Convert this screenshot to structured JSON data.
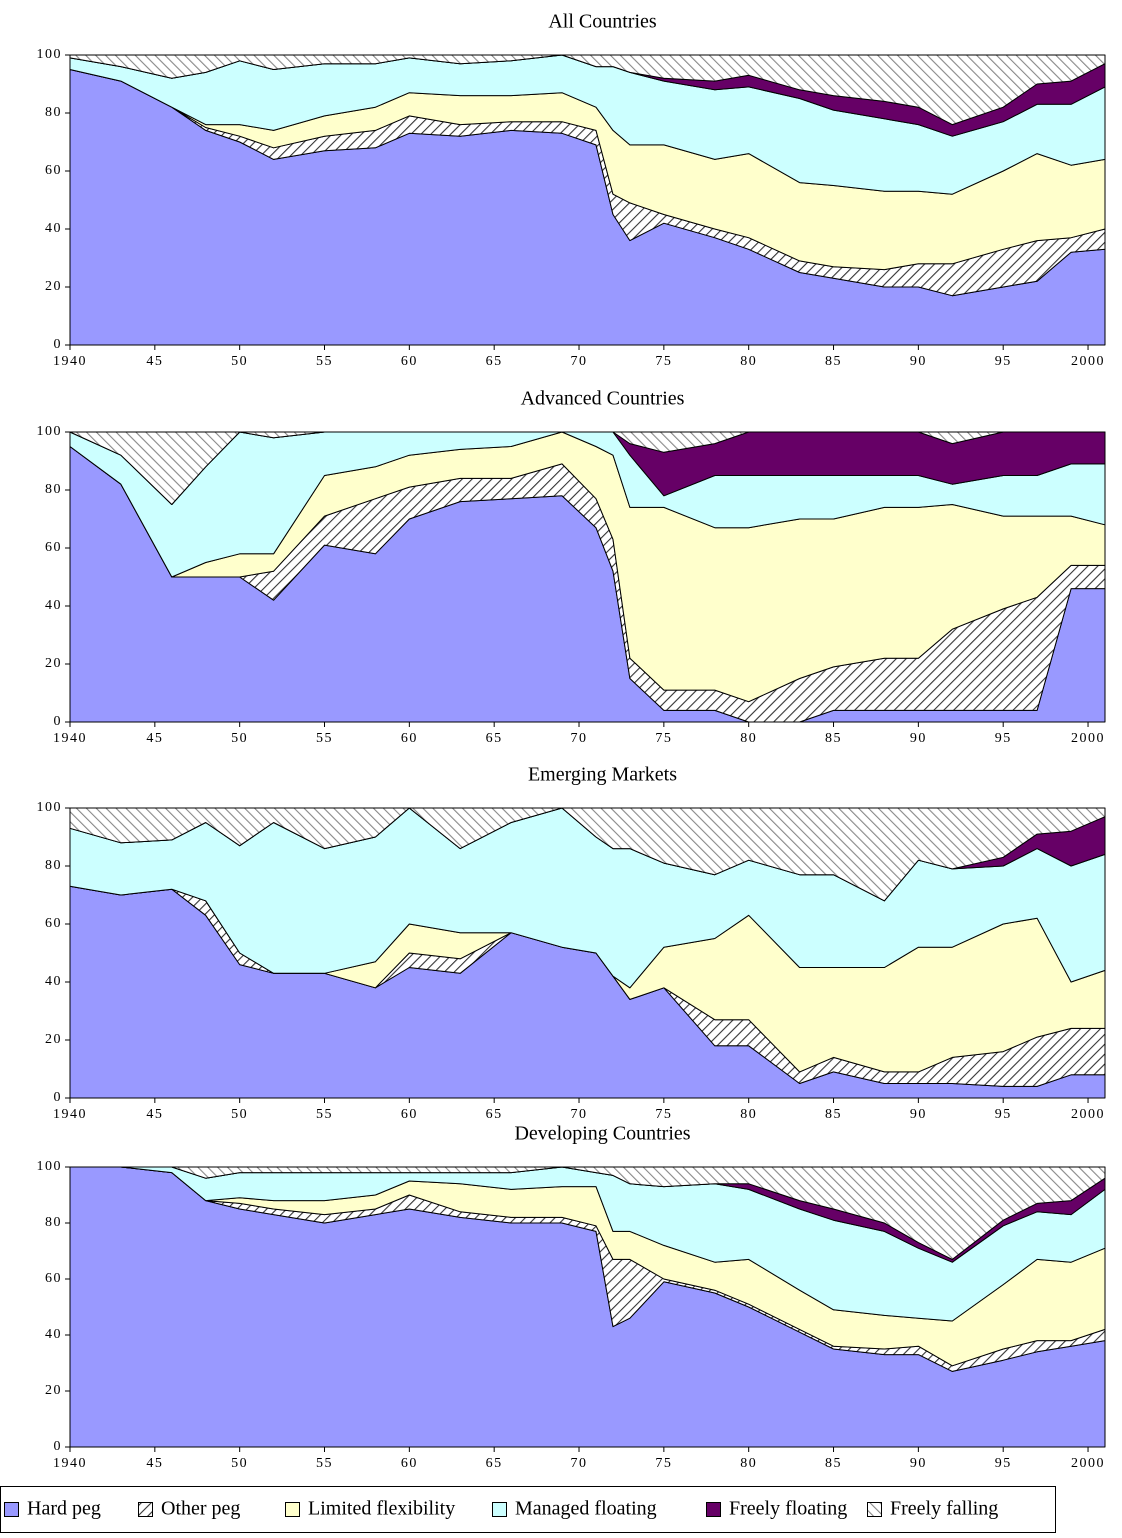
{
  "chart_data": [
    {
      "type": "stacked-area",
      "title": "All Countries",
      "x": [
        1940,
        1943,
        1946,
        1948,
        1950,
        1952,
        1955,
        1958,
        1960,
        1963,
        1966,
        1969,
        1971,
        1972,
        1973,
        1975,
        1978,
        1980,
        1983,
        1985,
        1988,
        1990,
        1992,
        1995,
        1997,
        1999,
        2001
      ],
      "series": [
        {
          "values": [
            95,
            91,
            82,
            74,
            70,
            64,
            67,
            68,
            73,
            72,
            74,
            73,
            69,
            45,
            36,
            42,
            37,
            33,
            25,
            23,
            20,
            20,
            17,
            20,
            22,
            32,
            33
          ]
        },
        {
          "values": [
            0,
            0,
            0,
            1,
            2,
            4,
            5,
            6,
            6,
            4,
            3,
            4,
            5,
            7,
            13,
            3,
            3,
            4,
            4,
            4,
            6,
            8,
            11,
            13,
            14,
            5,
            7
          ]
        },
        {
          "values": [
            0,
            0,
            0,
            1,
            4,
            6,
            7,
            8,
            8,
            10,
            9,
            10,
            8,
            22,
            20,
            24,
            24,
            29,
            27,
            28,
            27,
            25,
            24,
            27,
            30,
            25,
            24
          ]
        },
        {
          "values": [
            4,
            5,
            10,
            18,
            22,
            21,
            18,
            15,
            12,
            11,
            12,
            13,
            14,
            22,
            25,
            22,
            24,
            23,
            29,
            26,
            25,
            23,
            20,
            17,
            17,
            21,
            25
          ]
        },
        {
          "values": [
            0,
            0,
            0,
            0,
            0,
            0,
            0,
            0,
            0,
            0,
            0,
            0,
            0,
            0,
            0,
            1,
            3,
            4,
            3,
            5,
            6,
            6,
            4,
            5,
            7,
            8,
            8
          ]
        },
        {
          "values": [
            1,
            4,
            8,
            6,
            2,
            5,
            3,
            3,
            1,
            3,
            2,
            0,
            4,
            4,
            6,
            8,
            9,
            7,
            12,
            14,
            16,
            18,
            24,
            18,
            10,
            9,
            3
          ]
        }
      ],
      "xlim": [
        1940,
        2001
      ],
      "ylim": [
        0,
        100
      ],
      "xticks": [
        {
          "value": 1940,
          "label": "1940"
        },
        {
          "value": 1945,
          "label": "45"
        },
        {
          "value": 1950,
          "label": "50"
        },
        {
          "value": 1955,
          "label": "55"
        },
        {
          "value": 1960,
          "label": "60"
        },
        {
          "value": 1965,
          "label": "65"
        },
        {
          "value": 1970,
          "label": "70"
        },
        {
          "value": 1975,
          "label": "75"
        },
        {
          "value": 1980,
          "label": "80"
        },
        {
          "value": 1985,
          "label": "85"
        },
        {
          "value": 1990,
          "label": "90"
        },
        {
          "value": 1995,
          "label": "95"
        },
        {
          "value": 2000,
          "label": "2000"
        }
      ],
      "yticks": [
        0,
        20,
        40,
        60,
        80,
        100
      ]
    },
    {
      "type": "stacked-area",
      "title": "Advanced Countries",
      "x": [
        1940,
        1943,
        1946,
        1948,
        1950,
        1952,
        1955,
        1958,
        1960,
        1963,
        1966,
        1969,
        1971,
        1972,
        1973,
        1975,
        1978,
        1980,
        1983,
        1985,
        1988,
        1990,
        1992,
        1995,
        1997,
        1999,
        2001
      ],
      "series": [
        {
          "values": [
            95,
            82,
            50,
            50,
            50,
            42,
            61,
            58,
            70,
            76,
            77,
            78,
            67,
            52,
            15,
            4,
            4,
            0,
            0,
            4,
            4,
            4,
            4,
            4,
            4,
            46,
            46
          ]
        },
        {
          "values": [
            0,
            0,
            0,
            0,
            0,
            10,
            10,
            19,
            11,
            8,
            7,
            11,
            10,
            11,
            7,
            7,
            7,
            7,
            15,
            15,
            18,
            18,
            28,
            35,
            39,
            8,
            8
          ]
        },
        {
          "values": [
            0,
            0,
            0,
            5,
            8,
            6,
            14,
            11,
            11,
            10,
            11,
            11,
            18,
            29,
            52,
            63,
            56,
            60,
            55,
            51,
            52,
            52,
            43,
            32,
            28,
            17,
            14
          ]
        },
        {
          "values": [
            5,
            10,
            25,
            33,
            42,
            40,
            15,
            12,
            8,
            6,
            5,
            0,
            5,
            8,
            18,
            4,
            18,
            18,
            15,
            15,
            11,
            11,
            7,
            14,
            14,
            18,
            21
          ]
        },
        {
          "values": [
            0,
            0,
            0,
            0,
            0,
            0,
            0,
            0,
            0,
            0,
            0,
            0,
            0,
            0,
            4,
            15,
            11,
            15,
            15,
            15,
            15,
            15,
            14,
            15,
            15,
            11,
            11
          ]
        },
        {
          "values": [
            0,
            8,
            25,
            12,
            0,
            2,
            0,
            0,
            0,
            0,
            0,
            0,
            0,
            0,
            4,
            7,
            4,
            0,
            0,
            0,
            0,
            0,
            4,
            0,
            0,
            0,
            0
          ]
        }
      ],
      "xlim": [
        1940,
        2001
      ],
      "ylim": [
        0,
        100
      ],
      "xticks": [
        {
          "value": 1940,
          "label": "1940"
        },
        {
          "value": 1945,
          "label": "45"
        },
        {
          "value": 1950,
          "label": "50"
        },
        {
          "value": 1955,
          "label": "55"
        },
        {
          "value": 1960,
          "label": "60"
        },
        {
          "value": 1965,
          "label": "65"
        },
        {
          "value": 1970,
          "label": "70"
        },
        {
          "value": 1975,
          "label": "75"
        },
        {
          "value": 1980,
          "label": "80"
        },
        {
          "value": 1985,
          "label": "85"
        },
        {
          "value": 1990,
          "label": "90"
        },
        {
          "value": 1995,
          "label": "95"
        },
        {
          "value": 2000,
          "label": "2000"
        }
      ],
      "yticks": [
        0,
        20,
        40,
        60,
        80,
        100
      ]
    },
    {
      "type": "stacked-area",
      "title": "Emerging Markets",
      "x": [
        1940,
        1943,
        1946,
        1948,
        1950,
        1952,
        1955,
        1958,
        1960,
        1963,
        1966,
        1969,
        1971,
        1972,
        1973,
        1975,
        1978,
        1980,
        1983,
        1985,
        1988,
        1990,
        1992,
        1995,
        1997,
        1999,
        2001
      ],
      "series": [
        {
          "values": [
            73,
            70,
            72,
            63,
            46,
            43,
            43,
            38,
            45,
            43,
            57,
            52,
            50,
            42,
            34,
            38,
            18,
            18,
            5,
            9,
            5,
            5,
            5,
            4,
            4,
            8,
            8
          ]
        },
        {
          "values": [
            0,
            0,
            0,
            5,
            4,
            0,
            0,
            0,
            5,
            5,
            0,
            0,
            0,
            0,
            0,
            0,
            9,
            9,
            4,
            5,
            4,
            4,
            9,
            12,
            17,
            16,
            16
          ]
        },
        {
          "values": [
            0,
            0,
            0,
            0,
            0,
            0,
            0,
            9,
            10,
            9,
            0,
            0,
            0,
            0,
            4,
            14,
            28,
            36,
            36,
            31,
            36,
            43,
            38,
            44,
            41,
            16,
            20
          ]
        },
        {
          "values": [
            20,
            18,
            17,
            27,
            37,
            52,
            43,
            43,
            40,
            29,
            38,
            48,
            40,
            44,
            48,
            29,
            22,
            19,
            32,
            32,
            23,
            30,
            27,
            20,
            24,
            40,
            40
          ]
        },
        {
          "values": [
            0,
            0,
            0,
            0,
            0,
            0,
            0,
            0,
            0,
            0,
            0,
            0,
            0,
            0,
            0,
            0,
            0,
            0,
            0,
            0,
            0,
            0,
            0,
            3,
            5,
            12,
            13
          ]
        },
        {
          "values": [
            7,
            12,
            11,
            5,
            13,
            5,
            14,
            10,
            0,
            14,
            5,
            0,
            10,
            14,
            14,
            19,
            23,
            18,
            23,
            23,
            32,
            18,
            21,
            17,
            9,
            8,
            3
          ]
        }
      ],
      "xlim": [
        1940,
        2001
      ],
      "ylim": [
        0,
        100
      ],
      "xticks": [
        {
          "value": 1940,
          "label": "1940"
        },
        {
          "value": 1945,
          "label": "45"
        },
        {
          "value": 1950,
          "label": "50"
        },
        {
          "value": 1955,
          "label": "55"
        },
        {
          "value": 1960,
          "label": "60"
        },
        {
          "value": 1965,
          "label": "65"
        },
        {
          "value": 1970,
          "label": "70"
        },
        {
          "value": 1975,
          "label": "75"
        },
        {
          "value": 1980,
          "label": "80"
        },
        {
          "value": 1985,
          "label": "85"
        },
        {
          "value": 1990,
          "label": "90"
        },
        {
          "value": 1995,
          "label": "95"
        },
        {
          "value": 2000,
          "label": "2000"
        }
      ],
      "yticks": [
        0,
        20,
        40,
        60,
        80,
        100
      ]
    },
    {
      "type": "stacked-area",
      "title": "Developing Countries",
      "x": [
        1940,
        1943,
        1946,
        1948,
        1950,
        1952,
        1955,
        1958,
        1960,
        1963,
        1966,
        1969,
        1971,
        1972,
        1973,
        1975,
        1978,
        1980,
        1983,
        1985,
        1988,
        1990,
        1992,
        1995,
        1997,
        1999,
        2001
      ],
      "series": [
        {
          "values": [
            100,
            100,
            98,
            88,
            85,
            83,
            80,
            83,
            85,
            82,
            80,
            80,
            77,
            43,
            46,
            59,
            55,
            50,
            41,
            35,
            33,
            33,
            27,
            31,
            34,
            36,
            38
          ]
        },
        {
          "values": [
            0,
            0,
            0,
            0,
            2,
            2,
            3,
            2,
            5,
            2,
            2,
            2,
            2,
            24,
            21,
            1,
            1,
            1,
            1,
            1,
            2,
            3,
            2,
            4,
            4,
            2,
            4
          ]
        },
        {
          "values": [
            0,
            0,
            0,
            0,
            2,
            3,
            5,
            5,
            5,
            10,
            10,
            11,
            14,
            10,
            10,
            12,
            10,
            16,
            14,
            13,
            12,
            10,
            16,
            23,
            29,
            28,
            29
          ]
        },
        {
          "values": [
            0,
            0,
            2,
            8,
            9,
            10,
            10,
            8,
            3,
            4,
            6,
            7,
            5,
            20,
            17,
            21,
            28,
            25,
            29,
            32,
            30,
            25,
            21,
            21,
            17,
            17,
            21
          ]
        },
        {
          "values": [
            0,
            0,
            0,
            0,
            0,
            0,
            0,
            0,
            0,
            0,
            0,
            0,
            0,
            0,
            0,
            0,
            0,
            2,
            3,
            4,
            3,
            2,
            1,
            2,
            3,
            5,
            4
          ]
        },
        {
          "values": [
            0,
            0,
            0,
            4,
            2,
            2,
            2,
            2,
            2,
            2,
            2,
            0,
            2,
            3,
            6,
            7,
            6,
            6,
            12,
            15,
            20,
            27,
            33,
            19,
            13,
            12,
            4
          ]
        }
      ],
      "xlim": [
        1940,
        2001
      ],
      "ylim": [
        0,
        100
      ],
      "xticks": [
        {
          "value": 1940,
          "label": "1940"
        },
        {
          "value": 1945,
          "label": "45"
        },
        {
          "value": 1950,
          "label": "50"
        },
        {
          "value": 1955,
          "label": "55"
        },
        {
          "value": 1960,
          "label": "60"
        },
        {
          "value": 1965,
          "label": "65"
        },
        {
          "value": 1970,
          "label": "70"
        },
        {
          "value": 1975,
          "label": "75"
        },
        {
          "value": 1980,
          "label": "80"
        },
        {
          "value": 1985,
          "label": "85"
        },
        {
          "value": 1990,
          "label": "90"
        },
        {
          "value": 1995,
          "label": "95"
        },
        {
          "value": 2000,
          "label": "2000"
        }
      ],
      "yticks": [
        0,
        20,
        40,
        60,
        80,
        100
      ]
    }
  ],
  "legend": {
    "items": [
      {
        "name": "Hard peg",
        "color": "#9999ff"
      },
      {
        "name": "Other peg",
        "color": "#333333",
        "pattern": "hatch"
      },
      {
        "name": "Limited flexibility",
        "color": "#ffffcc"
      },
      {
        "name": "Managed floating",
        "color": "#ccffff"
      },
      {
        "name": "Freely floating",
        "color": "#660066"
      },
      {
        "name": "Freely falling",
        "color": "#888888",
        "pattern": "hatch"
      }
    ]
  }
}
